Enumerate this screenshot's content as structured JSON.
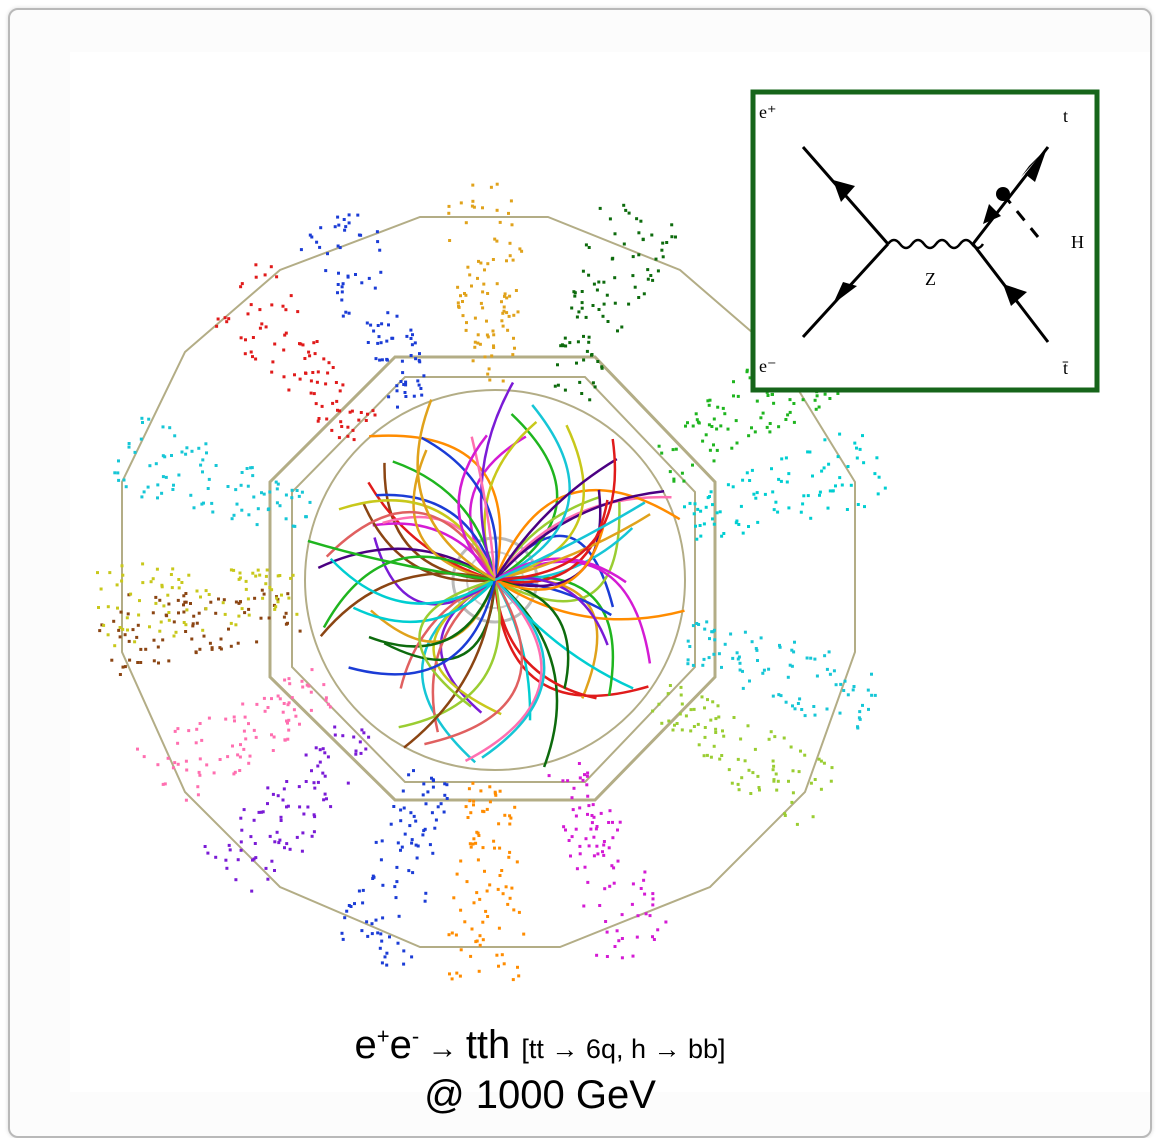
{
  "colors": {
    "detector_outline": "#b3ad86",
    "inset_border": "#16651a",
    "track_palette": [
      "#e01b1b",
      "#1b3cd6",
      "#1fb51f",
      "#d41bd4",
      "#16c6d6",
      "#e0a21b",
      "#7a1bd6",
      "#0d6b0d",
      "#ff6fb0",
      "#8b4513",
      "#9acd32",
      "#ff8c00",
      "#4b0082",
      "#00ced1",
      "#c8c81b",
      "#e06060"
    ]
  },
  "diagram": {
    "labels": {
      "e_plus": "e⁺",
      "e_minus": "e⁻",
      "t": "t",
      "tbar": "t̄",
      "H": "H",
      "Z": "Z"
    }
  },
  "caption": {
    "line1_main_a": "e",
    "line1_sup_a": "+",
    "line1_main_b": "e",
    "line1_sup_b": "-",
    "line1_arrow": " → ",
    "line1_product": "tth",
    "line1_detail": "[tt → 6q, h → bb]",
    "line2": "@ 1000 GeV"
  }
}
